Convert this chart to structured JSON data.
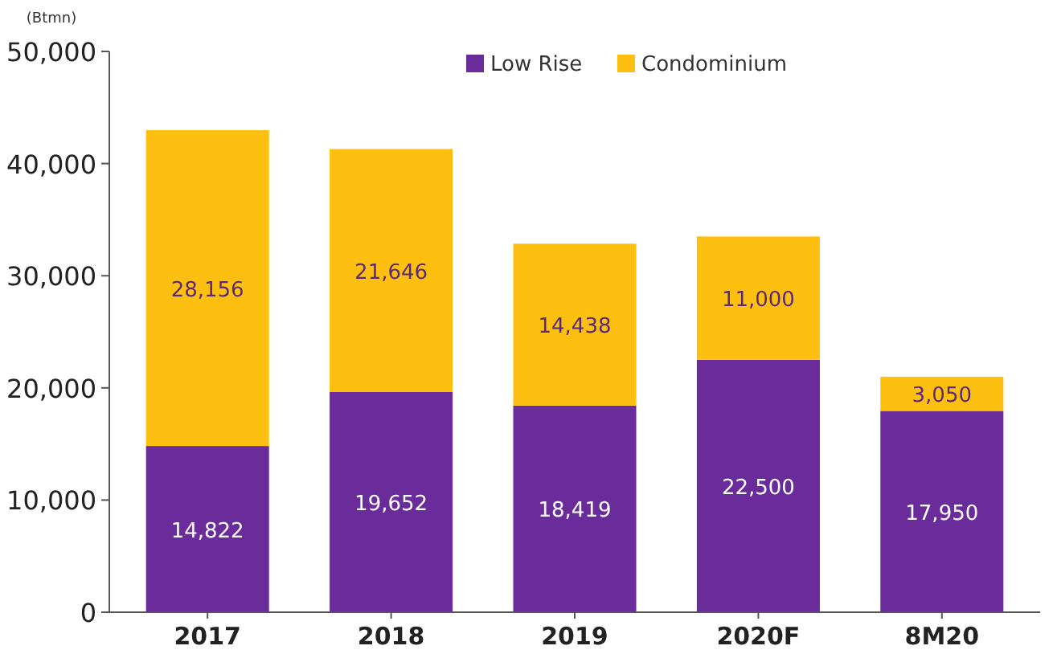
{
  "chart_data": {
    "type": "bar",
    "stacked": true,
    "ylabel": "(Btmn)",
    "categories": [
      "2017",
      "2018",
      "2019",
      "2020F",
      "8M20"
    ],
    "series": [
      {
        "name": "Low Rise",
        "color": "#6b2c9b",
        "values": [
          14822,
          19652,
          18419,
          22500,
          17950
        ],
        "value_labels": [
          "14,822",
          "19,652",
          "18,419",
          "22,500",
          "17,950"
        ]
      },
      {
        "name": "Condominium",
        "color": "#fec010",
        "values": [
          28156,
          21646,
          14438,
          11000,
          3050
        ],
        "value_labels": [
          "28,156",
          "21,646",
          "14,438",
          "11,000",
          "3,050"
        ]
      }
    ],
    "ylim": [
      0,
      50000
    ],
    "yticks": [
      {
        "value": 0,
        "label": "0"
      },
      {
        "value": 10000,
        "label": "10,000"
      },
      {
        "value": 20000,
        "label": "20,000"
      },
      {
        "value": 30000,
        "label": "30,000"
      },
      {
        "value": 40000,
        "label": "40,000"
      },
      {
        "value": 50000,
        "label": "50,000"
      }
    ],
    "grid": false,
    "legend": "top"
  }
}
